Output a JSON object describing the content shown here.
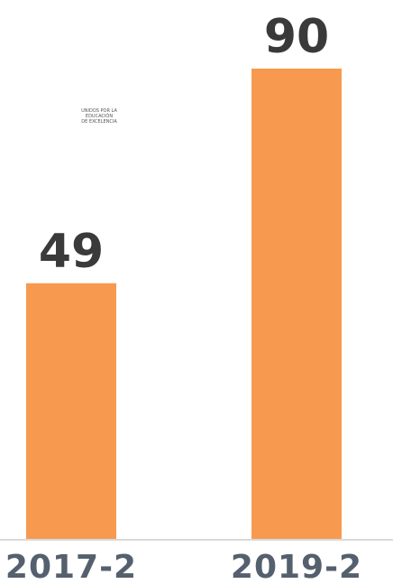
{
  "watermark": {
    "line1": "UNIDOS POR LA",
    "line2": "EDUCACIÓN",
    "line3": "DE EXCELENCIA"
  },
  "chart_data": {
    "type": "bar",
    "categories": [
      "2017-2",
      "2019-2"
    ],
    "values": [
      49,
      90
    ],
    "data_labels": [
      "49",
      "90"
    ],
    "ylim": [
      0,
      100
    ],
    "bar_color": "#f79a4f",
    "baseline_color": "#d9d9d9",
    "grid": false
  }
}
